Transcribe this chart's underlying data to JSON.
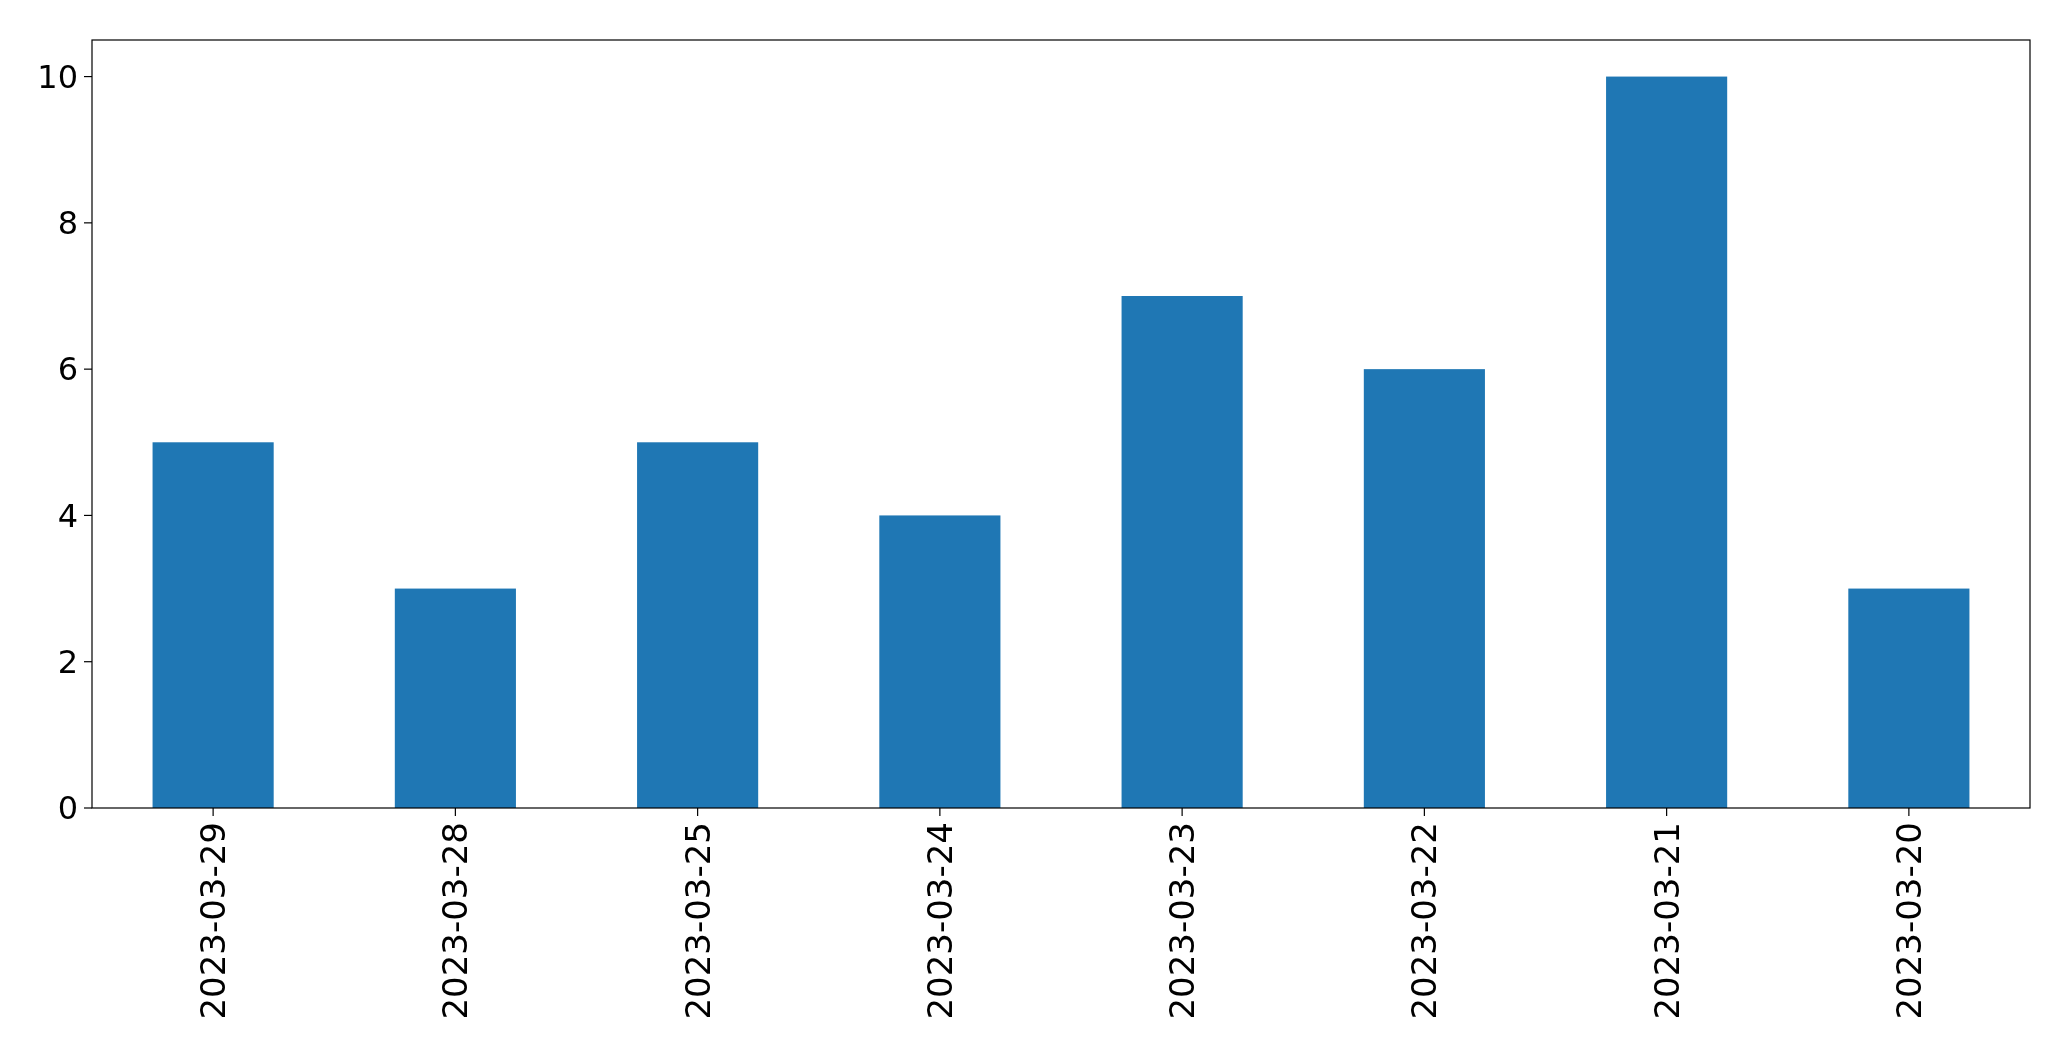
{
  "chart_data": {
    "type": "bar",
    "categories": [
      "2023-03-29",
      "2023-03-28",
      "2023-03-25",
      "2023-03-24",
      "2023-03-23",
      "2023-03-22",
      "2023-03-21",
      "2023-03-20"
    ],
    "values": [
      5,
      3,
      5,
      4,
      7,
      6,
      10,
      3
    ],
    "color": "#1f77b4",
    "ylim": [
      0,
      10.5
    ],
    "yticks": [
      0,
      2,
      4,
      6,
      8,
      10
    ],
    "grid": false
  }
}
